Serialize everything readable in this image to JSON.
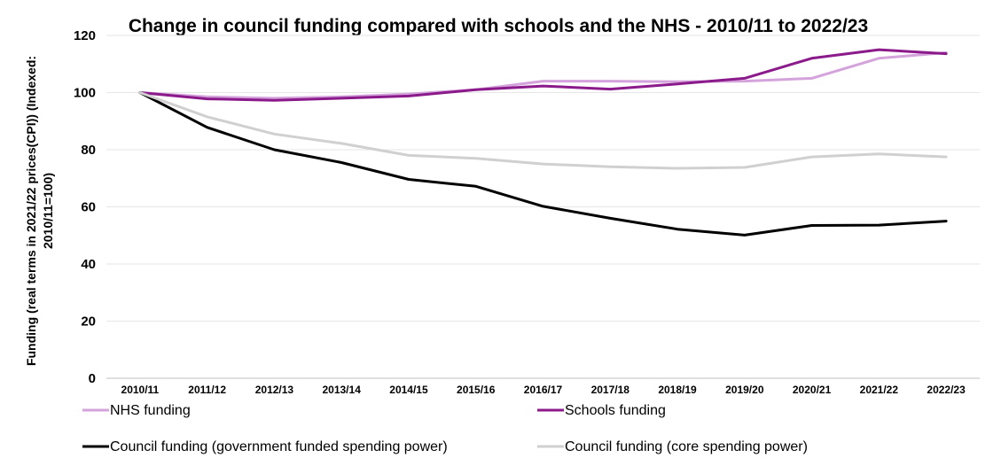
{
  "chart_data": {
    "type": "line",
    "title": "Change in council funding compared with schools and the NHS  - 2010/11 to 2022/23",
    "ylabel_lines": [
      "Funding (real terms in 2021/22 prices(CPI)) (Indexed:",
      "2010/11=100)"
    ],
    "xlabel": "",
    "ylim": [
      0,
      120
    ],
    "yticks": [
      "0",
      "20",
      "40",
      "60",
      "80",
      "100",
      "120"
    ],
    "grid": true,
    "legend_position": "bottom",
    "categories": [
      "2010/11",
      "2011/12",
      "2012/13",
      "2013/14",
      "2014/15",
      "2015/16",
      "2016/17",
      "2017/18",
      "2018/19",
      "2019/20",
      "2020/21",
      "2021/22",
      "2022/23"
    ],
    "series": [
      {
        "name": "NHS funding",
        "color": "#d4a3db",
        "values": [
          100,
          98.5,
          98,
          98.5,
          99.5,
          101,
          104,
          104,
          103.8,
          104,
          105,
          112,
          114
        ]
      },
      {
        "name": "Schools funding",
        "color": "#8b1a8b",
        "values": [
          100,
          97.8,
          97.3,
          98,
          98.8,
          101,
          102.3,
          101.2,
          103,
          105,
          112,
          115,
          113.6
        ]
      },
      {
        "name": "Council funding (government funded spending power)",
        "color": "#000000",
        "values": [
          100,
          87.8,
          80,
          75.5,
          69.6,
          67.2,
          60.2,
          56,
          52.2,
          50.1,
          53.5,
          53.6,
          55
        ]
      },
      {
        "name": "Council funding (core spending power)",
        "color": "#d0d0d0",
        "values": [
          100,
          91.5,
          85.5,
          82.2,
          78,
          77,
          75,
          74,
          73.5,
          73.8,
          77.5,
          78.5,
          77.5
        ]
      }
    ]
  }
}
